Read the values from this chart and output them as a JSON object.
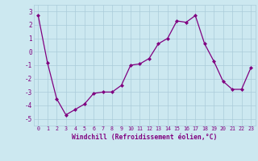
{
  "x": [
    0,
    1,
    2,
    3,
    4,
    5,
    6,
    7,
    8,
    9,
    10,
    11,
    12,
    13,
    14,
    15,
    16,
    17,
    18,
    19,
    20,
    21,
    22,
    23
  ],
  "y": [
    2.7,
    -0.8,
    -3.5,
    -4.7,
    -4.3,
    -3.9,
    -3.1,
    -3.0,
    -3.0,
    -2.5,
    -1.0,
    -0.9,
    -0.5,
    0.6,
    1.0,
    2.3,
    2.2,
    2.7,
    0.6,
    -0.7,
    -2.2,
    -2.8,
    -2.8,
    -1.2
  ],
  "line_color": "#800080",
  "marker": "D",
  "marker_size": 2.0,
  "bg_color": "#cce8f0",
  "grid_color": "#aaccda",
  "xlabel": "Windchill (Refroidissement éolien,°C)",
  "xlim": [
    -0.5,
    23.5
  ],
  "ylim": [
    -5.5,
    3.5
  ],
  "yticks": [
    -5,
    -4,
    -3,
    -2,
    -1,
    0,
    1,
    2,
    3
  ],
  "xticks": [
    0,
    1,
    2,
    3,
    4,
    5,
    6,
    7,
    8,
    9,
    10,
    11,
    12,
    13,
    14,
    15,
    16,
    17,
    18,
    19,
    20,
    21,
    22,
    23
  ],
  "tick_color": "#800080",
  "label_color": "#800080",
  "font_family": "monospace",
  "xtick_fontsize": 4.8,
  "ytick_fontsize": 5.5,
  "xlabel_fontsize": 5.8
}
